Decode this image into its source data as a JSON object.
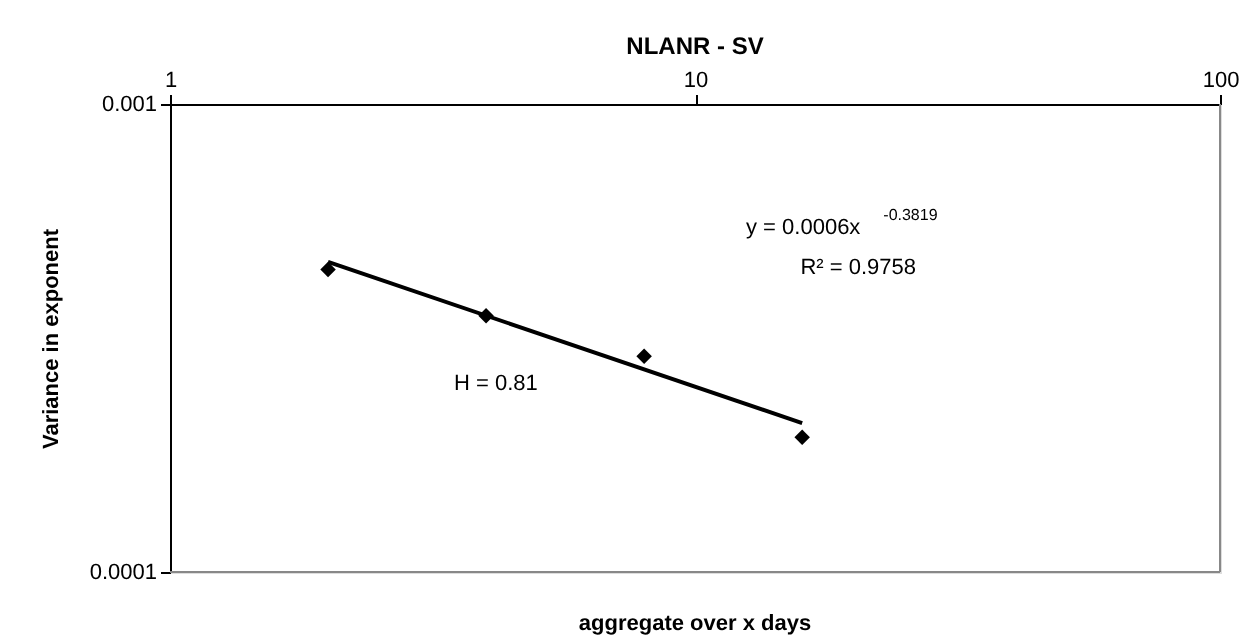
{
  "chart_data": {
    "type": "scatter",
    "title": "NLANR - SV",
    "xlabel": "aggregate over x days",
    "ylabel": "Variance in exponent",
    "log": "xy",
    "xlim": [
      1,
      100
    ],
    "xticks": [
      1,
      10,
      100
    ],
    "ylim": [
      0.0001,
      0.001
    ],
    "yticks": [
      0.0001,
      0.001
    ],
    "grid": false,
    "marker": "diamond",
    "series": [
      {
        "type": "scatter",
        "color": "#000000",
        "x": [
          2,
          4,
          8,
          16
        ],
        "values": [
          0.000443,
          0.000353,
          0.000289,
          0.000194
        ]
      },
      {
        "type": "line",
        "color": "#000000",
        "marker": "none",
        "line_style": "solid",
        "x": [
          2,
          16
        ],
        "values": [
          0.00046,
          0.000208
        ]
      }
    ],
    "annotations": [
      "y = 0.0006x$^{-0.3819}$",
      "R² = 0.9758",
      "H = 0.81"
    ]
  }
}
